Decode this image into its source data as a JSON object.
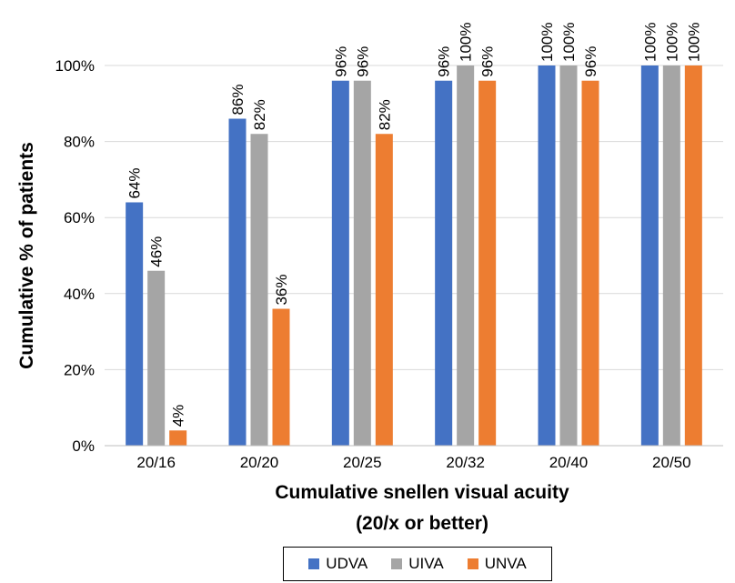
{
  "chart_data": {
    "type": "bar",
    "categories": [
      "20/16",
      "20/20",
      "20/25",
      "20/32",
      "20/40",
      "20/50"
    ],
    "series": [
      {
        "name": "UDVA",
        "color": "#4472C4",
        "values": [
          64,
          86,
          96,
          96,
          100,
          100
        ],
        "labels": [
          "64%",
          "86%",
          "96%",
          "96%",
          "100%",
          "100%"
        ]
      },
      {
        "name": "UIVA",
        "color": "#A5A5A5",
        "values": [
          46,
          82,
          96,
          100,
          100,
          100
        ],
        "labels": [
          "46%",
          "82%",
          "96%",
          "100%",
          "100%",
          "100%"
        ]
      },
      {
        "name": "UNVA",
        "color": "#ED7D31",
        "values": [
          4,
          36,
          82,
          96,
          96,
          100
        ],
        "labels": [
          "4%",
          "36%",
          "82%",
          "96%",
          "96%",
          "100%"
        ]
      }
    ],
    "ylabel": "Cumulative % of patients",
    "xlabel_line1": "Cumulative snellen visual acuity",
    "xlabel_line2": "(20/x or better)",
    "ylim": [
      0,
      100
    ],
    "yticks": [
      "0%",
      "20%",
      "40%",
      "60%",
      "80%",
      "100%"
    ],
    "grid": true,
    "legend_position": "bottom"
  }
}
